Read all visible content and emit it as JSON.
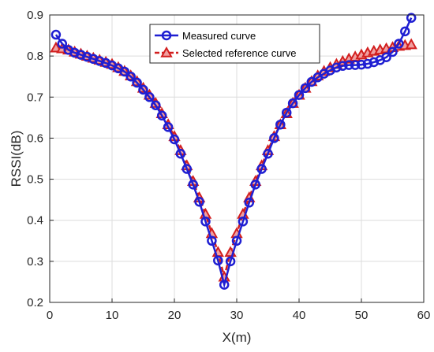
{
  "chart_data": {
    "type": "line",
    "xlabel": "X(m)",
    "ylabel": "RSSI(dB)",
    "xlim": [
      0,
      60
    ],
    "ylim": [
      0.2,
      0.9
    ],
    "xticks": [
      "0",
      "10",
      "20",
      "30",
      "40",
      "50",
      "60"
    ],
    "yticks": [
      "0.2",
      "0.3",
      "0.4",
      "0.5",
      "0.6",
      "0.7",
      "0.8",
      "0.9"
    ],
    "grid": true,
    "legend_position": "top-center",
    "x": [
      1,
      2,
      3,
      4,
      5,
      6,
      7,
      8,
      9,
      10,
      11,
      12,
      13,
      14,
      15,
      16,
      17,
      18,
      19,
      20,
      21,
      22,
      23,
      24,
      25,
      26,
      27,
      28,
      29,
      30,
      31,
      32,
      33,
      34,
      35,
      36,
      37,
      38,
      39,
      40,
      41,
      42,
      43,
      44,
      45,
      46,
      47,
      48,
      49,
      50,
      51,
      52,
      53,
      54,
      55,
      56,
      57,
      58
    ],
    "series": [
      {
        "name": "Measured curve",
        "color": "#1f1fd2",
        "marker": "circle",
        "values": [
          0.852,
          0.83,
          0.815,
          0.808,
          0.803,
          0.798,
          0.793,
          0.788,
          0.783,
          0.777,
          0.77,
          0.762,
          0.75,
          0.735,
          0.718,
          0.7,
          0.68,
          0.655,
          0.627,
          0.597,
          0.562,
          0.525,
          0.487,
          0.445,
          0.397,
          0.35,
          0.302,
          0.243,
          0.3,
          0.35,
          0.397,
          0.443,
          0.487,
          0.525,
          0.562,
          0.6,
          0.633,
          0.662,
          0.685,
          0.705,
          0.722,
          0.737,
          0.748,
          0.757,
          0.765,
          0.772,
          0.776,
          0.778,
          0.778,
          0.779,
          0.781,
          0.785,
          0.79,
          0.797,
          0.81,
          0.83,
          0.86,
          0.893
        ]
      },
      {
        "name": "Selected reference curve",
        "color": "#d21f1f",
        "marker": "triangle",
        "values": [
          0.82,
          0.818,
          0.815,
          0.81,
          0.805,
          0.8,
          0.795,
          0.79,
          0.785,
          0.78,
          0.772,
          0.763,
          0.752,
          0.738,
          0.722,
          0.705,
          0.685,
          0.66,
          0.633,
          0.604,
          0.57,
          0.533,
          0.495,
          0.455,
          0.415,
          0.368,
          0.322,
          0.262,
          0.322,
          0.368,
          0.415,
          0.455,
          0.495,
          0.533,
          0.57,
          0.604,
          0.633,
          0.66,
          0.685,
          0.705,
          0.722,
          0.738,
          0.752,
          0.763,
          0.772,
          0.78,
          0.787,
          0.793,
          0.798,
          0.803,
          0.808,
          0.812,
          0.815,
          0.818,
          0.821,
          0.824,
          0.826,
          0.828
        ]
      }
    ]
  }
}
